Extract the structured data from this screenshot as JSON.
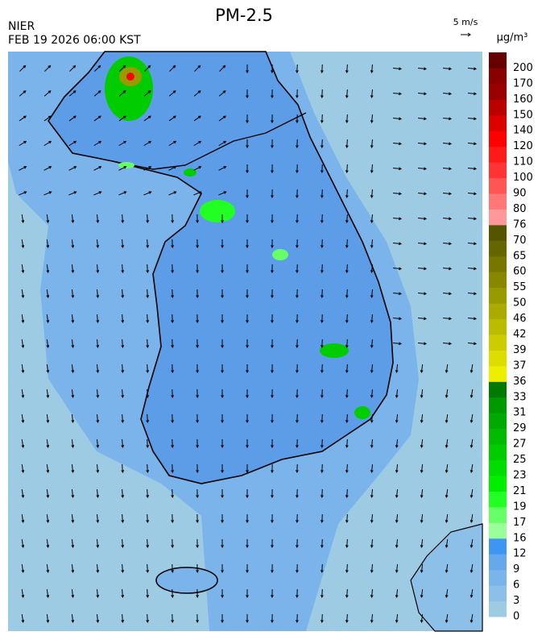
{
  "header": {
    "title": "PM-2.5",
    "agency": "NIER",
    "datetime": "FEB 19 2026 06:00 KST",
    "wind_scale": "5 m/s"
  },
  "colorbar": {
    "unit": "μg/m³",
    "ticks": [
      0,
      3,
      6,
      9,
      12,
      16,
      17,
      19,
      21,
      23,
      25,
      27,
      29,
      31,
      33,
      36,
      37,
      39,
      42,
      46,
      50,
      55,
      60,
      65,
      70,
      76,
      80,
      90,
      100,
      110,
      120,
      140,
      150,
      160,
      170,
      200
    ],
    "colors": [
      "#9dcbe4",
      "#8cc0e8",
      "#7ab4ea",
      "#67a7ec",
      "#3f95f2",
      "#99ff99",
      "#66ff66",
      "#22ff22",
      "#00ee00",
      "#00dd00",
      "#00cc00",
      "#00bb00",
      "#00aa00",
      "#009900",
      "#007a00",
      "#eeee00",
      "#dddd00",
      "#cccc00",
      "#bbbb00",
      "#aaaa00",
      "#999900",
      "#888800",
      "#777700",
      "#666600",
      "#555500",
      "#ff9999",
      "#ff7777",
      "#ff5555",
      "#ff3333",
      "#ff1a1a",
      "#ff0000",
      "#dd0000",
      "#bb0000",
      "#990000",
      "#880000",
      "#660000"
    ]
  }
}
